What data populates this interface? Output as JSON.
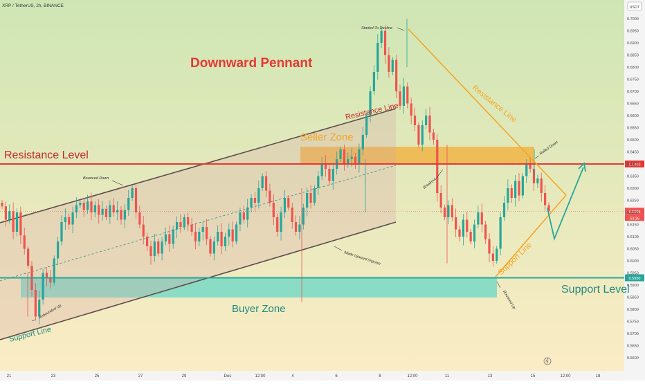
{
  "header": {
    "symbol_title": "XRP / TetherUS, 2h, BINANCE",
    "currency_badge": "USDT"
  },
  "annotations": {
    "title": "Downward Pennant",
    "resistance_level": "Resistance Level",
    "support_level": "Support Level",
    "seller_zone": "Seller Zone",
    "buyer_zone": "Buyer Zone",
    "resistance_line_channel": "Resistance Line",
    "resistance_line_pennant": "Resistance Line",
    "support_line_channel": "Support Line",
    "support_line_pennant": "Support Line",
    "started_to_decline": "Started To Decline",
    "bounced_down": "Bounced Down",
    "rebounded_up": "Rebounded Up",
    "made_upward_impulse": "Made Upward Impulse",
    "breakout": "Breakout",
    "bounced_up": "Bounced Up",
    "rolled_down": "Rolled Down"
  },
  "colors": {
    "background_top": "#cfe6b4",
    "background_bottom": "#fcecc5",
    "up_candle": "#26a69a",
    "down_candle": "#ef5350",
    "resistance_level": "#e53935",
    "support_level": "#26a69a",
    "seller_zone": "#f5a623",
    "buyer_zone": "#5fd5c5",
    "pennant": "#f5a623",
    "channel": "#5d4e4e",
    "title": "#e53935",
    "projection": "#26a69a"
  },
  "chart_data": {
    "type": "candlestick",
    "title": "XRP / TetherUS, 2h, BINANCE",
    "ylim": [
      0.56,
      0.705
    ],
    "y_ticks": [
      "0.7000",
      "0.6950",
      "0.6900",
      "0.6850",
      "0.6800",
      "0.6750",
      "0.6700",
      "0.6650",
      "0.6600",
      "0.6550",
      "0.6500",
      "0.6450",
      "0.6400",
      "0.6350",
      "0.6300",
      "0.6250",
      "0.6200",
      "0.6150",
      "0.6100",
      "0.6050",
      "0.6000",
      "0.5950",
      "0.5900",
      "0.5850",
      "0.5800",
      "0.5750",
      "0.5700",
      "0.5650",
      "0.5600"
    ],
    "x_ticks": [
      "21",
      "23",
      "25",
      "27",
      "29",
      "Dec",
      "12:00",
      "4",
      "6",
      "8",
      "12:00",
      "11",
      "13",
      "15",
      "12:00",
      "18"
    ],
    "levels": {
      "resistance": 0.64,
      "support": 0.593,
      "current_price": 0.6205,
      "countdown": "53:26"
    },
    "price_labels": {
      "resistance": "0.6400",
      "current": "0.6205",
      "support": "0.5930"
    },
    "closes": [
      0.6225,
      0.617,
      0.6205,
      0.612,
      0.62,
      0.6105,
      0.605,
      0.598,
      0.588,
      0.577,
      0.584,
      0.595,
      0.593,
      0.591,
      0.601,
      0.608,
      0.616,
      0.618,
      0.615,
      0.62,
      0.623,
      0.624,
      0.621,
      0.6245,
      0.62,
      0.623,
      0.619,
      0.6215,
      0.618,
      0.623,
      0.62,
      0.621,
      0.617,
      0.621,
      0.626,
      0.63,
      0.62,
      0.615,
      0.61,
      0.606,
      0.602,
      0.608,
      0.603,
      0.608,
      0.611,
      0.607,
      0.613,
      0.616,
      0.614,
      0.618,
      0.615,
      0.612,
      0.608,
      0.612,
      0.614,
      0.609,
      0.603,
      0.608,
      0.612,
      0.606,
      0.61,
      0.613,
      0.608,
      0.615,
      0.62,
      0.617,
      0.622,
      0.626,
      0.624,
      0.63,
      0.635,
      0.629,
      0.624,
      0.618,
      0.612,
      0.62,
      0.626,
      0.622,
      0.616,
      0.612,
      0.615,
      0.622,
      0.628,
      0.624,
      0.63,
      0.635,
      0.64,
      0.638,
      0.633,
      0.638,
      0.642,
      0.646,
      0.64,
      0.642,
      0.643,
      0.64,
      0.646,
      0.652,
      0.66,
      0.67,
      0.678,
      0.69,
      0.695,
      0.685,
      0.678,
      0.683,
      0.67,
      0.664,
      0.672,
      0.665,
      0.66,
      0.656,
      0.648,
      0.656,
      0.66,
      0.653,
      0.65,
      0.628,
      0.622,
      0.618,
      0.623,
      0.618,
      0.613,
      0.61,
      0.617,
      0.612,
      0.608,
      0.615,
      0.62,
      0.615,
      0.609,
      0.603,
      0.6,
      0.605,
      0.618,
      0.624,
      0.63,
      0.626,
      0.633,
      0.627,
      0.635,
      0.64,
      0.638,
      0.632,
      0.634,
      0.628,
      0.623,
      0.6205
    ],
    "annotations_geometry_note": "Channel, pennant, zones and projection arrow are hand-drawn analysis annotations."
  }
}
